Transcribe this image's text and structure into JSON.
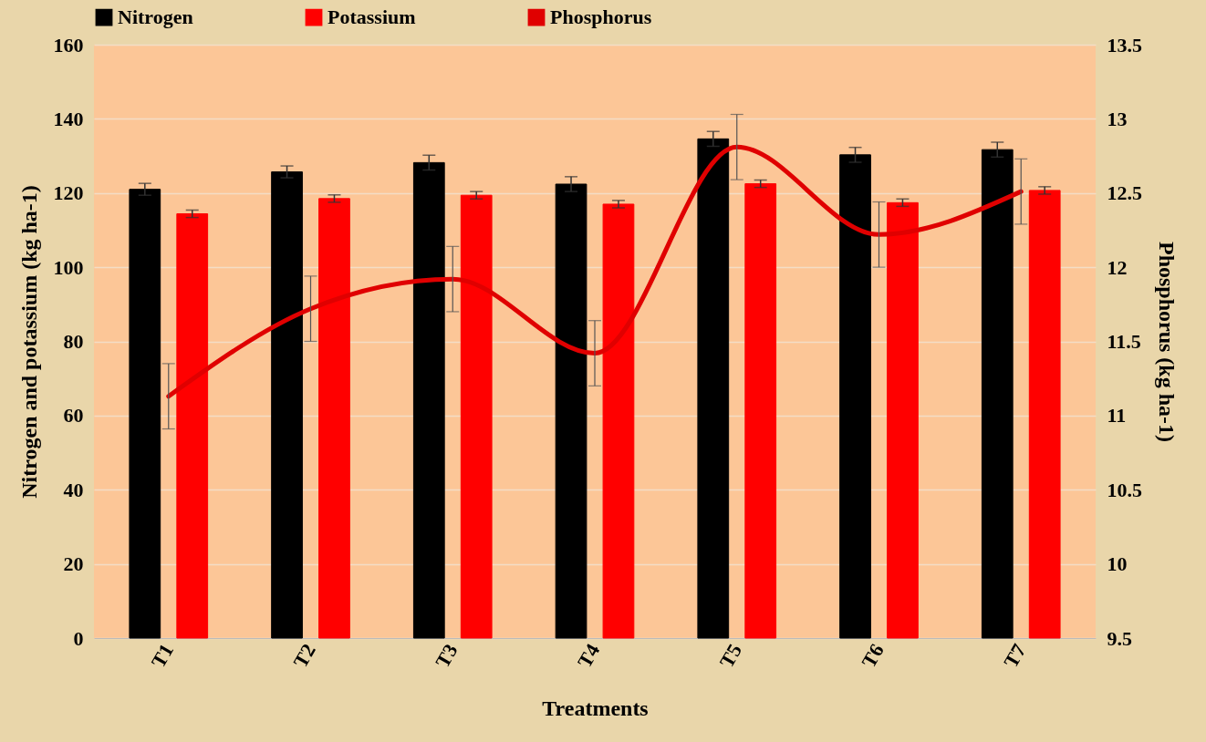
{
  "chart_data": {
    "type": "bar",
    "xlabel": "Treatments",
    "ylabel": "Nitrogen and potassium (kg ha-1)",
    "y2label": "Phosphorus (kg ha-1)",
    "categories": [
      "T1",
      "T2",
      "T3",
      "T4",
      "T5",
      "T6",
      "T7"
    ],
    "series": [
      {
        "name": "Nitrogen",
        "color": "#000000",
        "values": [
          121,
          125.7,
          128.2,
          122.4,
          134.6,
          130.3,
          131.7
        ],
        "errors": [
          1.6,
          1.6,
          2,
          2,
          2,
          2,
          2
        ]
      },
      {
        "name": "Potassium",
        "color": "#ff0000",
        "values": [
          114.4,
          118.5,
          119.4,
          117,
          122.5,
          117.4,
          120.7
        ],
        "errors": [
          1,
          1,
          1,
          1,
          1,
          1,
          1
        ]
      },
      {
        "name": "Phosphorus",
        "type": "line",
        "axis": "y2",
        "color": "#e00000",
        "values": [
          11.13,
          11.72,
          11.92,
          11.42,
          12.81,
          12.22,
          12.51
        ],
        "errors": [
          0.22,
          0.22,
          0.22,
          0.22,
          0.22,
          0.22,
          0.22
        ]
      }
    ],
    "ylim": [
      0,
      160
    ],
    "yticks": [
      0,
      20,
      40,
      60,
      80,
      100,
      120,
      140,
      160
    ],
    "y2lim": [
      9.5,
      13.5
    ],
    "y2ticks": [
      9.5,
      10,
      10.5,
      11,
      11.5,
      12,
      12.5,
      13,
      13.5
    ],
    "grid": "y",
    "legend": "top",
    "line_style": "solid"
  }
}
